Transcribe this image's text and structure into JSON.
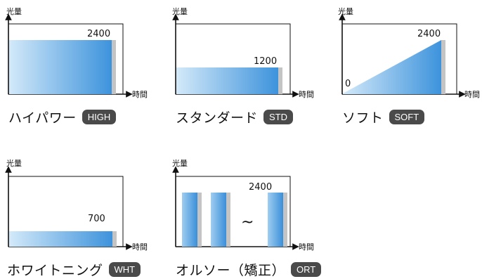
{
  "axis_labels": {
    "y": "光量",
    "x": "時間"
  },
  "colors": {
    "grad_light": "#cfe6f8",
    "grad_dark": "#3d93dc",
    "badge": "#4a4a4a",
    "edge": "#c4c4c4"
  },
  "modes": [
    {
      "id": "high",
      "name": "ハイパワー",
      "badge": "HIGH",
      "value_labels": [
        "2400"
      ]
    },
    {
      "id": "std",
      "name": "スタンダード",
      "badge": "STD",
      "value_labels": [
        "1200"
      ]
    },
    {
      "id": "soft",
      "name": "ソフト",
      "badge": "SOFT",
      "value_labels": [
        "0",
        "2400"
      ]
    },
    {
      "id": "wht",
      "name": "ホワイトニング",
      "badge": "WHT",
      "value_labels": [
        "700"
      ]
    },
    {
      "id": "ort",
      "name": "オルソー（矯正）",
      "badge": "ORT",
      "value_labels": [
        "2400"
      ],
      "gap_symbol": "~"
    }
  ]
}
